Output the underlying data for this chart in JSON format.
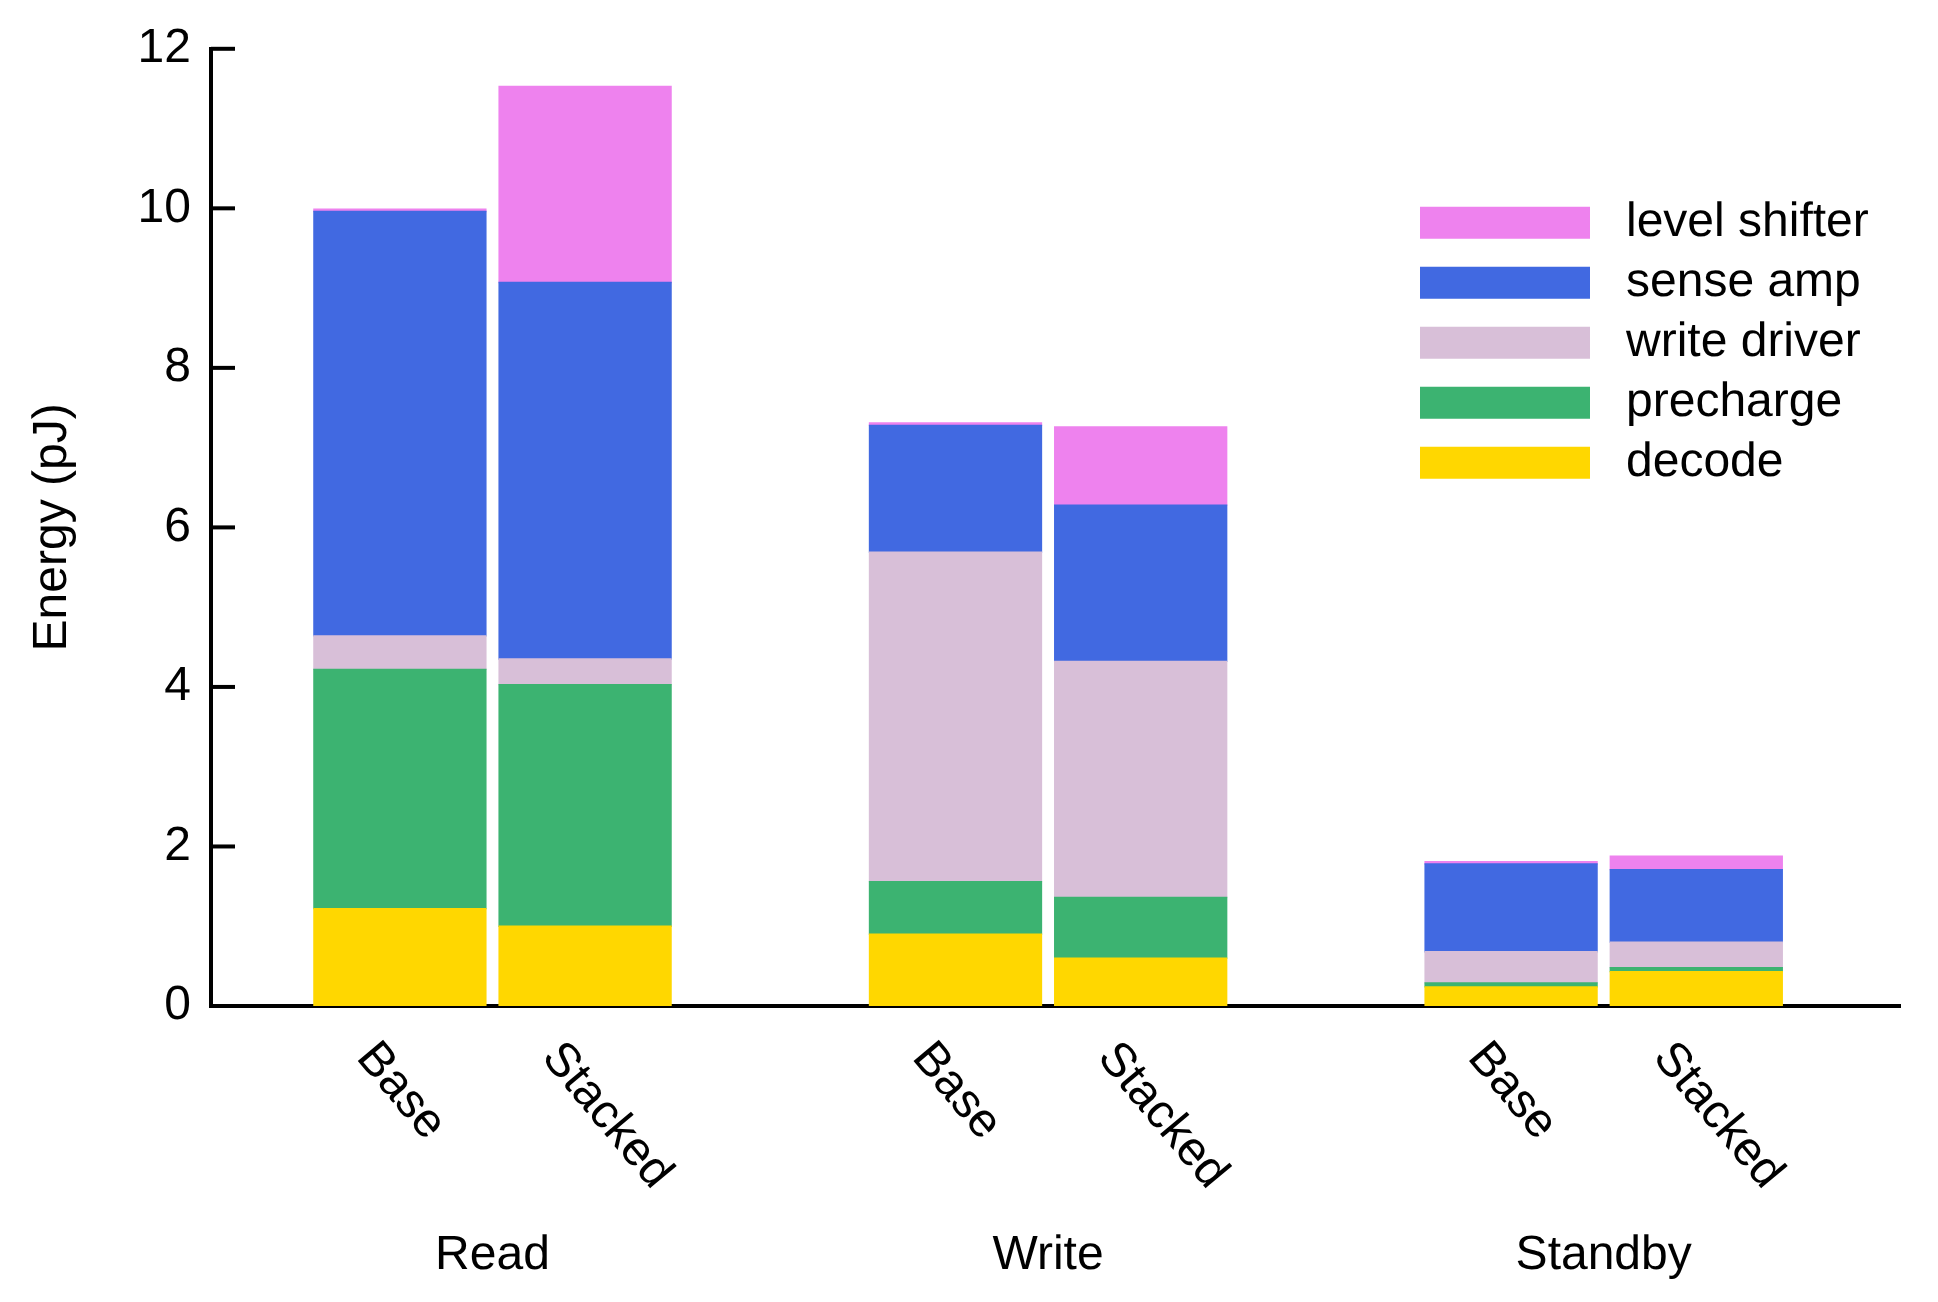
{
  "chart_data": {
    "type": "bar",
    "stacked": true,
    "ylabel": "Energy (pJ)",
    "categories": [
      "Base",
      "Stacked",
      "Base",
      "Stacked",
      "Base",
      "Stacked"
    ],
    "annotations": [
      "Read",
      "Write",
      "Standby"
    ],
    "series": [
      {
        "name": "decode",
        "color": "#ffd700",
        "values": [
          1.22,
          1.0,
          0.9,
          0.6,
          0.24,
          0.43
        ]
      },
      {
        "name": "precharge",
        "color": "#3cb371",
        "values": [
          3.0,
          3.03,
          0.66,
          0.76,
          0.05,
          0.05
        ]
      },
      {
        "name": "write driver",
        "color": "#d8bfd8",
        "values": [
          0.42,
          0.32,
          4.13,
          2.96,
          0.39,
          0.32
        ]
      },
      {
        "name": "sense amp",
        "color": "#4169e1",
        "values": [
          5.32,
          4.72,
          1.59,
          1.96,
          1.1,
          0.91
        ]
      },
      {
        "name": "level shifter",
        "color": "#ee82ee",
        "values": [
          0.03,
          2.46,
          0.03,
          0.98,
          0.03,
          0.17
        ]
      }
    ],
    "ylim": [
      0,
      12
    ],
    "yticks": [
      0,
      2,
      4,
      6,
      8,
      10,
      12
    ],
    "grid": false,
    "legend": "top right"
  }
}
